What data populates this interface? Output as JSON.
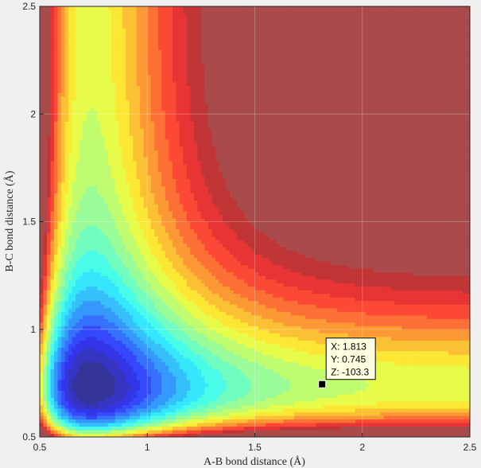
{
  "chart_data": {
    "type": "heatmap",
    "subtype": "filled-contour",
    "title": "",
    "xlabel": "A-B bond distance (Å)",
    "ylabel": "B-C bond distance (Å)",
    "xlim": [
      0.5,
      2.5
    ],
    "ylim": [
      0.5,
      2.5
    ],
    "xticks": [
      "0.5",
      "1",
      "1.5",
      "2",
      "2.5"
    ],
    "yticks": [
      "0.5",
      "1",
      "1.5",
      "2",
      "2.5"
    ],
    "colormap": "jet",
    "grid": true,
    "levels": 20,
    "datatip": {
      "x": 1.813,
      "y": 0.745,
      "z": -103.3,
      "lines": [
        "X: 1.813",
        "Y: 0.745",
        "Z: -103.3"
      ]
    }
  },
  "colors": {
    "background": "#f0f0f0",
    "axes_border": "#262626",
    "grid": "#dcdcdc",
    "plateau": "#a94b4b"
  }
}
